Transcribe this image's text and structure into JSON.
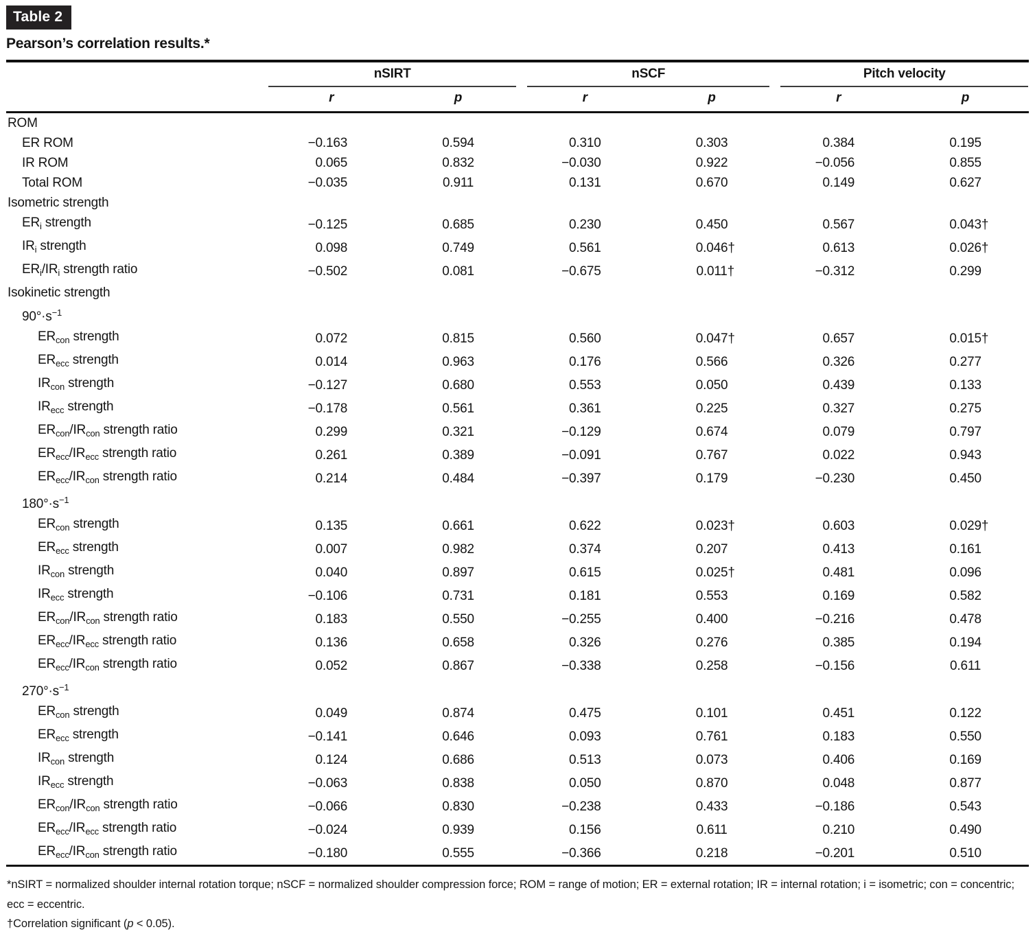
{
  "table_tag": {
    "label": "Table 2",
    "bg": "#242122",
    "fg": "#ffffff"
  },
  "title": "Pearson’s correlation results.*",
  "columns": {
    "groups": [
      {
        "label": "nSIRT"
      },
      {
        "label": "nSCF"
      },
      {
        "label": "Pitch velocity"
      }
    ],
    "sub": [
      "r",
      "p",
      "r",
      "p",
      "r",
      "p"
    ]
  },
  "rows": [
    {
      "label": "ROM",
      "indent": 0,
      "values": [
        "",
        "",
        "",
        "",
        "",
        ""
      ]
    },
    {
      "label": "ER ROM",
      "indent": 1,
      "values": [
        "−0.163",
        "0.594",
        "0.310",
        "0.303",
        "0.384",
        "0.195"
      ]
    },
    {
      "label": "IR ROM",
      "indent": 1,
      "values": [
        "0.065",
        "0.832",
        "−0.030",
        "0.922",
        "−0.056",
        "0.855"
      ]
    },
    {
      "label": "Total ROM",
      "indent": 1,
      "values": [
        "−0.035",
        "0.911",
        "0.131",
        "0.670",
        "0.149",
        "0.627"
      ]
    },
    {
      "label": "Isometric strength",
      "indent": 0,
      "values": [
        "",
        "",
        "",
        "",
        "",
        ""
      ]
    },
    {
      "label": "ER~i~ strength",
      "indent": 1,
      "values": [
        "−0.125",
        "0.685",
        "0.230",
        "0.450",
        "0.567",
        "0.043†"
      ]
    },
    {
      "label": "IR~i~ strength",
      "indent": 1,
      "values": [
        "0.098",
        "0.749",
        "0.561",
        "0.046†",
        "0.613",
        "0.026†"
      ]
    },
    {
      "label": "ER~i~/IR~i~ strength ratio",
      "indent": 1,
      "values": [
        "−0.502",
        "0.081",
        "−0.675",
        "0.011†",
        "−0.312",
        "0.299"
      ]
    },
    {
      "label": "Isokinetic strength",
      "indent": 0,
      "values": [
        "",
        "",
        "",
        "",
        "",
        ""
      ]
    },
    {
      "label": "90°·s^−1^",
      "indent": 1,
      "values": [
        "",
        "",
        "",
        "",
        "",
        ""
      ]
    },
    {
      "label": "ER~con~ strength",
      "indent": 2,
      "values": [
        "0.072",
        "0.815",
        "0.560",
        "0.047†",
        "0.657",
        "0.015†"
      ]
    },
    {
      "label": "ER~ecc~ strength",
      "indent": 2,
      "values": [
        "0.014",
        "0.963",
        "0.176",
        "0.566",
        "0.326",
        "0.277"
      ]
    },
    {
      "label": "IR~con~ strength",
      "indent": 2,
      "values": [
        "−0.127",
        "0.680",
        "0.553",
        "0.050",
        "0.439",
        "0.133"
      ]
    },
    {
      "label": "IR~ecc~ strength",
      "indent": 2,
      "values": [
        "−0.178",
        "0.561",
        "0.361",
        "0.225",
        "0.327",
        "0.275"
      ]
    },
    {
      "label": "ER~con~/IR~con~ strength ratio",
      "indent": 2,
      "values": [
        "0.299",
        "0.321",
        "−0.129",
        "0.674",
        "0.079",
        "0.797"
      ]
    },
    {
      "label": "ER~ecc~/IR~ecc~ strength ratio",
      "indent": 2,
      "values": [
        "0.261",
        "0.389",
        "−0.091",
        "0.767",
        "0.022",
        "0.943"
      ]
    },
    {
      "label": "ER~ecc~/IR~con~ strength ratio",
      "indent": 2,
      "values": [
        "0.214",
        "0.484",
        "−0.397",
        "0.179",
        "−0.230",
        "0.450"
      ]
    },
    {
      "label": "180°·s^−1^",
      "indent": 1,
      "values": [
        "",
        "",
        "",
        "",
        "",
        ""
      ]
    },
    {
      "label": "ER~con~ strength",
      "indent": 2,
      "values": [
        "0.135",
        "0.661",
        "0.622",
        "0.023†",
        "0.603",
        "0.029†"
      ]
    },
    {
      "label": "ER~ecc~ strength",
      "indent": 2,
      "values": [
        "0.007",
        "0.982",
        "0.374",
        "0.207",
        "0.413",
        "0.161"
      ]
    },
    {
      "label": "IR~con~ strength",
      "indent": 2,
      "values": [
        "0.040",
        "0.897",
        "0.615",
        "0.025†",
        "0.481",
        "0.096"
      ]
    },
    {
      "label": "IR~ecc~ strength",
      "indent": 2,
      "values": [
        "−0.106",
        "0.731",
        "0.181",
        "0.553",
        "0.169",
        "0.582"
      ]
    },
    {
      "label": "ER~con~/IR~con~ strength ratio",
      "indent": 2,
      "values": [
        "0.183",
        "0.550",
        "−0.255",
        "0.400",
        "−0.216",
        "0.478"
      ]
    },
    {
      "label": "ER~ecc~/IR~ecc~ strength ratio",
      "indent": 2,
      "values": [
        "0.136",
        "0.658",
        "0.326",
        "0.276",
        "0.385",
        "0.194"
      ]
    },
    {
      "label": "ER~ecc~/IR~con~ strength ratio",
      "indent": 2,
      "values": [
        "0.052",
        "0.867",
        "−0.338",
        "0.258",
        "−0.156",
        "0.611"
      ]
    },
    {
      "label": "270°·s^−1^",
      "indent": 1,
      "values": [
        "",
        "",
        "",
        "",
        "",
        ""
      ]
    },
    {
      "label": "ER~con~ strength",
      "indent": 2,
      "values": [
        "0.049",
        "0.874",
        "0.475",
        "0.101",
        "0.451",
        "0.122"
      ]
    },
    {
      "label": "ER~ecc~ strength",
      "indent": 2,
      "values": [
        "−0.141",
        "0.646",
        "0.093",
        "0.761",
        "0.183",
        "0.550"
      ]
    },
    {
      "label": "IR~con~ strength",
      "indent": 2,
      "values": [
        "0.124",
        "0.686",
        "0.513",
        "0.073",
        "0.406",
        "0.169"
      ]
    },
    {
      "label": "IR~ecc~ strength",
      "indent": 2,
      "values": [
        "−0.063",
        "0.838",
        "0.050",
        "0.870",
        "0.048",
        "0.877"
      ]
    },
    {
      "label": "ER~con~/IR~con~ strength ratio",
      "indent": 2,
      "values": [
        "−0.066",
        "0.830",
        "−0.238",
        "0.433",
        "−0.186",
        "0.543"
      ]
    },
    {
      "label": "ER~ecc~/IR~ecc~ strength ratio",
      "indent": 2,
      "values": [
        "−0.024",
        "0.939",
        "0.156",
        "0.611",
        "0.210",
        "0.490"
      ]
    },
    {
      "label": "ER~ecc~/IR~con~ strength ratio",
      "indent": 2,
      "values": [
        "−0.180",
        "0.555",
        "−0.366",
        "0.218",
        "−0.201",
        "0.510"
      ]
    }
  ],
  "footnotes": [
    "*nSIRT = normalized shoulder internal rotation torque; nSCF = normalized shoulder compression force; ROM = range of motion; ER = external rotation; IR = internal rotation; i = isometric; con = concentric; ecc = eccentric.",
    "†Correlation significant (_p_ < 0.05)."
  ]
}
